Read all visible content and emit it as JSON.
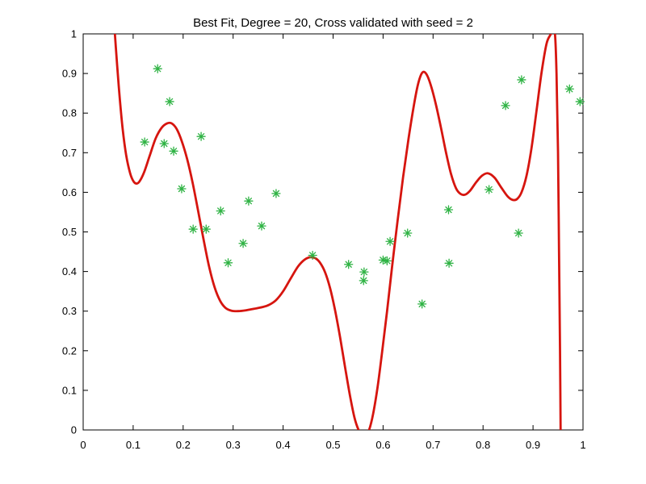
{
  "figure": {
    "background_color": "#ffffff"
  },
  "chart_data": {
    "type": "line",
    "title": "Best Fit, Degree = 20, Cross validated with seed = 2",
    "xlabel": "",
    "ylabel": "",
    "xlim": [
      0,
      1
    ],
    "ylim": [
      0,
      1
    ],
    "grid": false,
    "legend": "none",
    "box": true,
    "tick_direction": "in",
    "axes_color": "#000000",
    "x_ticks": [
      0,
      0.1,
      0.2,
      0.3,
      0.4,
      0.5,
      0.6,
      0.7,
      0.8,
      0.9,
      1
    ],
    "x_tick_labels": [
      "0",
      "0.1",
      "0.2",
      "0.3",
      "0.4",
      "0.5",
      "0.6",
      "0.7",
      "0.8",
      "0.9",
      "1"
    ],
    "y_ticks": [
      0,
      0.1,
      0.2,
      0.3,
      0.4,
      0.5,
      0.6,
      0.7,
      0.8,
      0.9,
      1
    ],
    "y_tick_labels": [
      "0",
      "0.1",
      "0.2",
      "0.3",
      "0.4",
      "0.5",
      "0.6",
      "0.7",
      "0.8",
      "0.9",
      "1"
    ],
    "series": [
      {
        "name": "best_fit_curve",
        "type": "line",
        "color": "#d6150f",
        "line_width": 2.8,
        "points": [
          [
            0.06,
            1.06
          ],
          [
            0.064,
            0.99
          ],
          [
            0.068,
            0.92
          ],
          [
            0.073,
            0.84
          ],
          [
            0.079,
            0.76
          ],
          [
            0.086,
            0.694
          ],
          [
            0.094,
            0.648
          ],
          [
            0.101,
            0.627
          ],
          [
            0.107,
            0.622
          ],
          [
            0.113,
            0.628
          ],
          [
            0.122,
            0.651
          ],
          [
            0.133,
            0.692
          ],
          [
            0.145,
            0.736
          ],
          [
            0.157,
            0.763
          ],
          [
            0.168,
            0.774
          ],
          [
            0.177,
            0.774
          ],
          [
            0.187,
            0.76
          ],
          [
            0.197,
            0.73
          ],
          [
            0.208,
            0.684
          ],
          [
            0.219,
            0.624
          ],
          [
            0.23,
            0.553
          ],
          [
            0.241,
            0.48
          ],
          [
            0.252,
            0.412
          ],
          [
            0.263,
            0.36
          ],
          [
            0.274,
            0.326
          ],
          [
            0.285,
            0.308
          ],
          [
            0.297,
            0.301
          ],
          [
            0.31,
            0.3
          ],
          [
            0.325,
            0.302
          ],
          [
            0.342,
            0.306
          ],
          [
            0.358,
            0.31
          ],
          [
            0.372,
            0.316
          ],
          [
            0.386,
            0.328
          ],
          [
            0.4,
            0.35
          ],
          [
            0.415,
            0.382
          ],
          [
            0.43,
            0.413
          ],
          [
            0.443,
            0.43
          ],
          [
            0.454,
            0.436
          ],
          [
            0.464,
            0.434
          ],
          [
            0.474,
            0.422
          ],
          [
            0.484,
            0.398
          ],
          [
            0.494,
            0.358
          ],
          [
            0.504,
            0.302
          ],
          [
            0.514,
            0.234
          ],
          [
            0.524,
            0.158
          ],
          [
            0.534,
            0.085
          ],
          [
            0.543,
            0.03
          ],
          [
            0.551,
            0.0
          ],
          [
            0.558,
            -0.012
          ],
          [
            0.565,
            -0.014
          ],
          [
            0.572,
            0.0
          ],
          [
            0.58,
            0.04
          ],
          [
            0.589,
            0.108
          ],
          [
            0.598,
            0.196
          ],
          [
            0.608,
            0.3
          ],
          [
            0.618,
            0.412
          ],
          [
            0.629,
            0.528
          ],
          [
            0.64,
            0.638
          ],
          [
            0.651,
            0.736
          ],
          [
            0.661,
            0.815
          ],
          [
            0.669,
            0.868
          ],
          [
            0.676,
            0.897
          ],
          [
            0.682,
            0.904
          ],
          [
            0.689,
            0.893
          ],
          [
            0.697,
            0.864
          ],
          [
            0.706,
            0.82
          ],
          [
            0.716,
            0.762
          ],
          [
            0.726,
            0.7
          ],
          [
            0.736,
            0.646
          ],
          [
            0.746,
            0.61
          ],
          [
            0.755,
            0.596
          ],
          [
            0.764,
            0.594
          ],
          [
            0.774,
            0.604
          ],
          [
            0.786,
            0.625
          ],
          [
            0.798,
            0.642
          ],
          [
            0.81,
            0.648
          ],
          [
            0.823,
            0.637
          ],
          [
            0.836,
            0.613
          ],
          [
            0.849,
            0.59
          ],
          [
            0.859,
            0.581
          ],
          [
            0.868,
            0.583
          ],
          [
            0.877,
            0.6
          ],
          [
            0.887,
            0.642
          ],
          [
            0.897,
            0.712
          ],
          [
            0.907,
            0.806
          ],
          [
            0.917,
            0.902
          ],
          [
            0.927,
            0.975
          ],
          [
            0.935,
            0.998
          ],
          [
            0.94,
            1.008
          ],
          [
            0.944,
            0.998
          ],
          [
            0.947,
            0.9
          ],
          [
            0.95,
            0.7
          ],
          [
            0.952,
            0.45
          ],
          [
            0.954,
            0.2
          ],
          [
            0.9555,
            -0.06
          ]
        ]
      },
      {
        "name": "sample_points",
        "type": "scatter",
        "marker": "asterisk",
        "color": "#2fb344",
        "points": [
          [
            0.149,
            0.912
          ],
          [
            0.173,
            0.829
          ],
          [
            0.123,
            0.727
          ],
          [
            0.162,
            0.723
          ],
          [
            0.181,
            0.704
          ],
          [
            0.236,
            0.741
          ],
          [
            0.197,
            0.609
          ],
          [
            0.331,
            0.578
          ],
          [
            0.275,
            0.553
          ],
          [
            0.22,
            0.507
          ],
          [
            0.246,
            0.507
          ],
          [
            0.32,
            0.471
          ],
          [
            0.29,
            0.422
          ],
          [
            0.386,
            0.597
          ],
          [
            0.357,
            0.515
          ],
          [
            0.459,
            0.441
          ],
          [
            0.531,
            0.418
          ],
          [
            0.562,
            0.399
          ],
          [
            0.561,
            0.377
          ],
          [
            0.6,
            0.429
          ],
          [
            0.608,
            0.427
          ],
          [
            0.614,
            0.476
          ],
          [
            0.649,
            0.497
          ],
          [
            0.678,
            0.318
          ],
          [
            0.731,
            0.556
          ],
          [
            0.732,
            0.421
          ],
          [
            0.812,
            0.607
          ],
          [
            0.845,
            0.819
          ],
          [
            0.871,
            0.497
          ],
          [
            0.877,
            0.884
          ],
          [
            0.973,
            0.861
          ],
          [
            0.994,
            0.829
          ]
        ]
      }
    ]
  }
}
